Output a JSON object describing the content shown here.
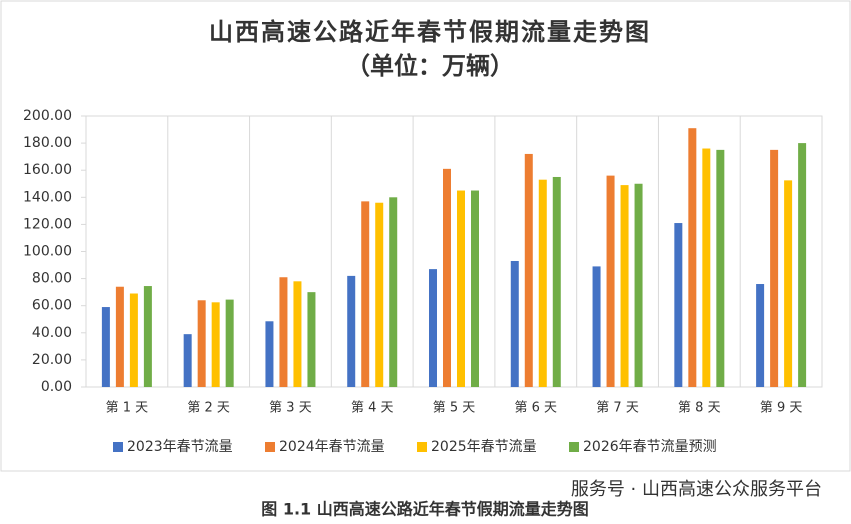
{
  "chart_data": {
    "type": "bar",
    "title": "山西高速公路近年春节假期流量走势图",
    "subtitle": "（单位：万辆）",
    "categories": [
      "第 1 天",
      "第 2 天",
      "第 3 天",
      "第 4 天",
      "第 5 天",
      "第 6 天",
      "第 7 天",
      "第 8 天",
      "第 9 天"
    ],
    "series": [
      {
        "name": "2023年春节流量",
        "color": "#4472c4",
        "values": [
          59,
          39,
          48.5,
          82,
          87,
          93,
          89,
          121,
          76
        ]
      },
      {
        "name": "2024年春节流量",
        "color": "#ed7d31",
        "values": [
          74,
          64,
          81,
          137,
          161,
          172,
          156,
          191,
          175
        ]
      },
      {
        "name": "2025年春节流量",
        "color": "#ffc000",
        "values": [
          69,
          62.5,
          78,
          136,
          145,
          153,
          149,
          176,
          152.5
        ]
      },
      {
        "name": "2026年春节流量预测",
        "color": "#70ad47",
        "values": [
          74.5,
          64.5,
          70,
          140,
          145,
          155,
          150,
          175,
          180
        ]
      }
    ],
    "ylim": [
      0,
      200
    ],
    "yticks": [
      {
        "value": 0,
        "label": "0.00"
      },
      {
        "value": 20,
        "label": "20.00"
      },
      {
        "value": 40,
        "label": "40.00"
      },
      {
        "value": 60,
        "label": "60.00"
      },
      {
        "value": 80,
        "label": "80.00"
      },
      {
        "value": 100,
        "label": "100.00"
      },
      {
        "value": 120,
        "label": "120.00"
      },
      {
        "value": 140,
        "label": "140.00"
      },
      {
        "value": 160,
        "label": "160.00"
      },
      {
        "value": 180,
        "label": "180.00"
      },
      {
        "value": 200,
        "label": "200.00"
      }
    ],
    "legend": "bottom",
    "watermark": "服务号 · 山西高速公众服务平台",
    "caption": "图 1.1  山西高速公路近年春节假期流量走势图"
  }
}
